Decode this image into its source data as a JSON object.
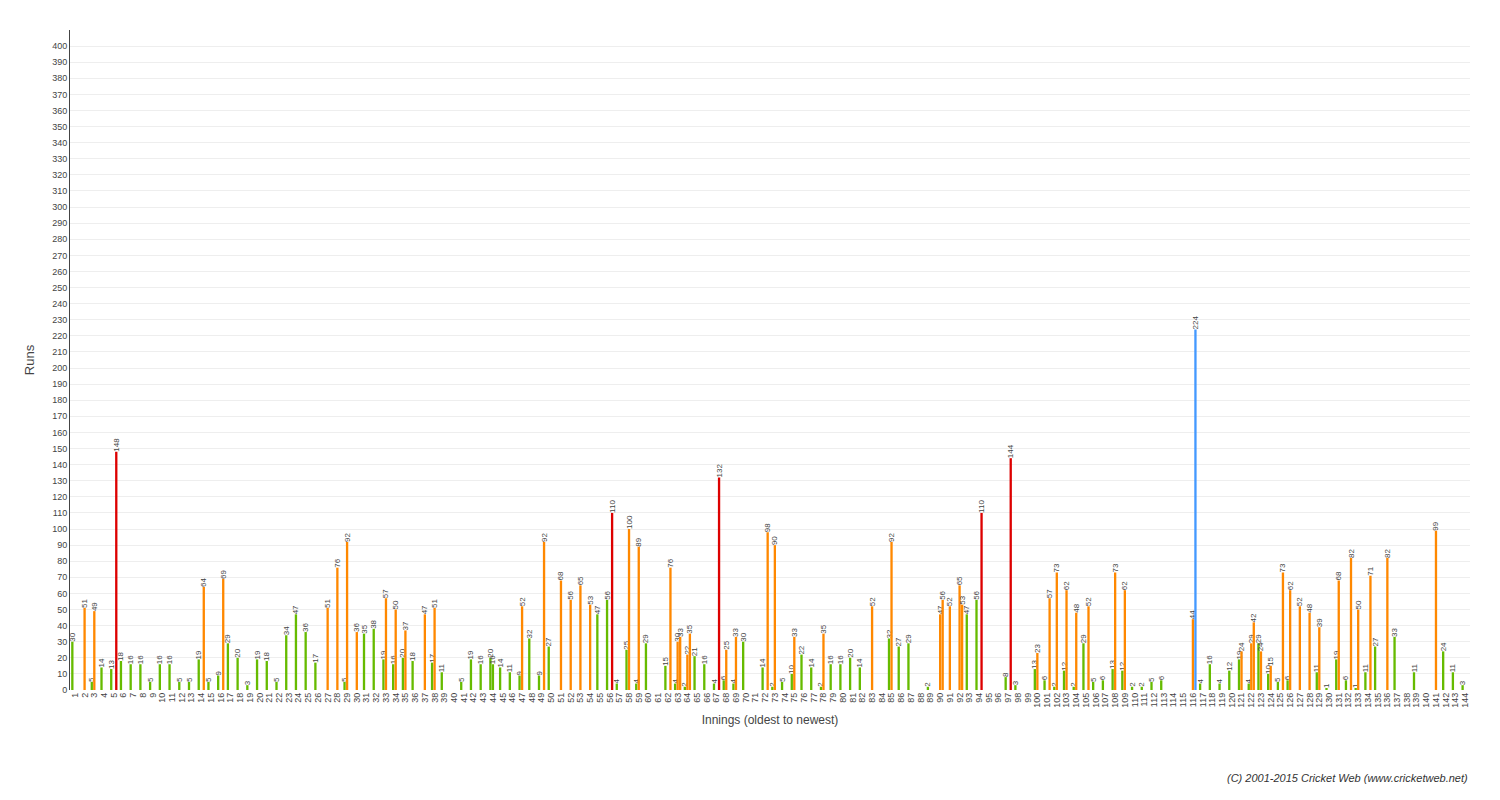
{
  "chart_data": {
    "type": "bar",
    "ylabel": "Runs",
    "xlabel": "Innings (oldest to newest)",
    "footer": "(C) 2001-2015 Cricket Web (www.cricketweb.net)",
    "ylim": [
      0,
      410
    ],
    "yticks": [
      0,
      10,
      20,
      30,
      40,
      50,
      60,
      70,
      80,
      90,
      100,
      110,
      120,
      130,
      140,
      150,
      160,
      170,
      180,
      190,
      200,
      210,
      220,
      230,
      240,
      250,
      260,
      270,
      280,
      290,
      300,
      310,
      320,
      330,
      340,
      350,
      360,
      370,
      380,
      390,
      400
    ],
    "grid": true,
    "data_labels": true,
    "categories": [
      "1",
      "2",
      "3",
      "4",
      "5",
      "6",
      "7",
      "8",
      "9",
      "10",
      "11",
      "12",
      "13",
      "14",
      "15",
      "16",
      "17",
      "18",
      "19",
      "20",
      "21",
      "22",
      "23",
      "24",
      "25",
      "26",
      "27",
      "28",
      "29",
      "30",
      "31",
      "32",
      "33",
      "34",
      "35",
      "36",
      "37",
      "38",
      "39",
      "40",
      "41",
      "42",
      "43",
      "44",
      "45",
      "46",
      "47",
      "48",
      "49",
      "50",
      "51",
      "52",
      "53",
      "54",
      "55",
      "56",
      "57",
      "58",
      "59",
      "60",
      "61",
      "62",
      "63",
      "64",
      "65",
      "66",
      "67",
      "68",
      "69",
      "70",
      "71",
      "72",
      "73",
      "74",
      "75",
      "76",
      "77",
      "78",
      "79",
      "80",
      "81",
      "82",
      "83",
      "84",
      "85",
      "86",
      "87",
      "88",
      "89",
      "90",
      "91",
      "92",
      "93",
      "94",
      "95",
      "96",
      "97",
      "98",
      "99",
      "100",
      "101",
      "102",
      "103",
      "104",
      "105",
      "106",
      "107",
      "108",
      "109",
      "110",
      "111",
      "112",
      "113",
      "114",
      "115",
      "116",
      "117",
      "118",
      "119",
      "120",
      "121",
      "122",
      "123",
      "124",
      "125",
      "126",
      "127",
      "128",
      "129",
      "130",
      "131",
      "132",
      "133",
      "134",
      "135",
      "136",
      "137",
      "138",
      "139",
      "140",
      "141",
      "142",
      "143",
      "144"
    ],
    "series": [
      {
        "values": [
          30,
          null,
          5,
          14,
          13,
          18,
          16,
          16,
          5,
          16,
          16,
          5,
          5,
          19,
          5,
          9,
          29,
          20,
          3,
          19,
          18,
          5,
          34,
          47,
          36,
          17,
          null,
          null,
          5,
          null,
          35,
          38,
          19,
          16,
          20,
          18,
          null,
          17,
          11,
          null,
          5,
          19,
          16,
          20,
          14,
          11,
          9,
          32,
          9,
          27,
          null,
          null,
          null,
          null,
          47,
          56,
          4,
          25,
          4,
          29,
          null,
          15,
          4,
          2,
          21,
          16,
          4,
          6,
          4,
          30,
          null,
          14,
          2,
          5,
          10,
          22,
          14,
          2,
          16,
          16,
          20,
          14,
          null,
          null,
          32,
          27,
          29,
          null,
          2,
          null,
          null,
          null,
          47,
          56,
          null,
          null,
          8,
          3,
          null,
          13,
          6,
          2,
          12,
          2,
          29,
          5,
          6,
          13,
          12,
          2,
          2,
          5,
          6,
          null,
          null,
          null,
          4,
          16,
          4,
          12,
          19,
          4,
          29,
          10,
          5,
          6,
          null,
          null,
          11,
          1,
          19,
          6,
          1,
          11,
          27,
          null,
          33,
          null,
          11,
          null,
          null,
          24,
          11,
          3
        ],
        "colors": [
          "#66BB00",
          "#66BB00",
          "#66BB00",
          "#66BB00",
          "#66BB00",
          "#66BB00",
          "#66BB00",
          "#66BB00",
          "#66BB00",
          "#66BB00",
          "#66BB00",
          "#66BB00",
          "#66BB00",
          "#66BB00",
          "#66BB00",
          "#66BB00",
          "#66BB00",
          "#66BB00",
          "#66BB00",
          "#66BB00",
          "#66BB00",
          "#66BB00",
          "#66BB00",
          "#66BB00",
          "#66BB00",
          "#66BB00",
          "#66BB00",
          "#66BB00",
          "#66BB00",
          "#66BB00",
          "#66BB00",
          "#66BB00",
          "#66BB00",
          "#66BB00",
          "#66BB00",
          "#66BB00",
          "#66BB00",
          "#66BB00",
          "#66BB00",
          "#66BB00",
          "#66BB00",
          "#66BB00",
          "#66BB00",
          "#66BB00",
          "#66BB00",
          "#66BB00",
          "#66BB00",
          "#66BB00",
          "#66BB00",
          "#66BB00",
          "#66BB00",
          "#66BB00",
          "#66BB00",
          "#66BB00",
          "#66BB00",
          "#66BB00",
          "#66BB00",
          "#66BB00",
          "#66BB00",
          "#66BB00",
          "#66BB00",
          "#66BB00",
          "#66BB00",
          "#66BB00",
          "#66BB00",
          "#66BB00",
          "#66BB00",
          "#66BB00",
          "#66BB00",
          "#66BB00",
          "#66BB00",
          "#66BB00",
          "#66BB00",
          "#66BB00",
          "#66BB00",
          "#66BB00",
          "#66BB00",
          "#66BB00",
          "#66BB00",
          "#66BB00",
          "#66BB00",
          "#66BB00",
          "#66BB00",
          "#66BB00",
          "#66BB00",
          "#66BB00",
          "#66BB00",
          "#66BB00",
          "#66BB00",
          "#66BB00",
          "#66BB00",
          "#66BB00",
          "#66BB00",
          "#66BB00",
          "#66BB00",
          "#66BB00",
          "#66BB00",
          "#66BB00",
          "#66BB00",
          "#66BB00",
          "#66BB00",
          "#66BB00",
          "#66BB00",
          "#66BB00",
          "#66BB00",
          "#66BB00",
          "#66BB00",
          "#66BB00",
          "#66BB00",
          "#66BB00",
          "#66BB00",
          "#66BB00",
          "#66BB00",
          "#66BB00",
          "#66BB00",
          "#66BB00",
          "#66BB00",
          "#66BB00",
          "#66BB00",
          "#66BB00",
          "#66BB00",
          "#66BB00",
          "#66BB00",
          "#66BB00",
          "#66BB00",
          "#66BB00",
          "#66BB00",
          "#66BB00",
          "#66BB00",
          "#66BB00",
          "#66BB00",
          "#66BB00",
          "#66BB00",
          "#66BB00",
          "#66BB00",
          "#66BB00",
          "#66BB00",
          "#66BB00",
          "#66BB00",
          "#66BB00",
          "#66BB00",
          "#66BB00",
          "#66BB00",
          "#66BB00"
        ]
      },
      {
        "values": [
          null,
          51,
          49,
          null,
          null,
          null,
          null,
          null,
          null,
          null,
          null,
          null,
          null,
          null,
          null,
          null,
          null,
          null,
          null,
          null,
          null,
          null,
          null,
          null,
          null,
          null,
          51,
          76,
          92,
          36,
          null,
          null,
          57,
          50,
          37,
          null,
          47,
          51,
          null,
          null,
          null,
          null,
          null,
          16,
          null,
          null,
          52,
          null,
          null,
          null,
          68,
          56,
          65,
          53,
          null,
          null,
          null,
          100,
          89,
          null,
          null,
          null,
          30,
          22,
          null,
          null,
          null,
          25,
          33,
          null,
          null,
          null,
          90,
          null,
          33,
          null,
          null,
          35,
          null,
          null,
          null,
          null,
          52,
          null,
          92,
          null,
          null,
          null,
          null,
          47,
          52,
          65,
          null,
          null,
          null,
          null,
          null,
          null,
          null,
          23,
          null,
          73,
          62,
          48,
          null,
          null,
          null,
          73,
          62,
          null,
          null,
          null,
          null,
          null,
          null,
          44,
          null,
          null,
          null,
          null,
          24,
          29,
          24,
          15,
          null,
          62,
          52,
          48,
          39,
          null,
          68,
          null,
          50,
          null,
          null,
          82,
          null,
          null,
          null,
          null,
          99,
          null,
          null,
          null
        ],
        "colors": [
          "#66BB00",
          "#FF8800",
          "#FF8800",
          "#66BB00",
          "#66BB00",
          "#66BB00",
          "#66BB00",
          "#66BB00",
          "#66BB00",
          "#66BB00",
          "#66BB00",
          "#66BB00",
          "#66BB00",
          "#66BB00",
          "#66BB00",
          "#66BB00",
          "#66BB00",
          "#66BB00",
          "#66BB00",
          "#66BB00",
          "#66BB00",
          "#66BB00",
          "#66BB00",
          "#66BB00",
          "#66BB00",
          "#66BB00",
          "#FF8800",
          "#FF8800",
          "#FF8800",
          "#FF8800",
          "#66BB00",
          "#66BB00",
          "#FF8800",
          "#FF8800",
          "#FF8800",
          "#66BB00",
          "#FF8800",
          "#FF8800",
          "#66BB00",
          "#66BB00",
          "#66BB00",
          "#66BB00",
          "#66BB00",
          "#66BB00",
          "#66BB00",
          "#66BB00",
          "#FF8800",
          "#66BB00",
          "#66BB00",
          "#66BB00",
          "#FF8800",
          "#FF8800",
          "#FF8800",
          "#FF8800",
          "#66BB00",
          "#66BB00",
          "#66BB00",
          "#FF8800",
          "#FF8800",
          "#66BB00",
          "#66BB00",
          "#66BB00",
          "#FF8800",
          "#FF8800",
          "#66BB00",
          "#66BB00",
          "#66BB00",
          "#FF8800",
          "#FF8800",
          "#66BB00",
          "#66BB00",
          "#66BB00",
          "#FF8800",
          "#66BB00",
          "#FF8800",
          "#66BB00",
          "#66BB00",
          "#FF8800",
          "#66BB00",
          "#66BB00",
          "#66BB00",
          "#66BB00",
          "#FF8800",
          "#66BB00",
          "#FF8800",
          "#66BB00",
          "#66BB00",
          "#66BB00",
          "#66BB00",
          "#FF8800",
          "#FF8800",
          "#FF8800",
          "#66BB00",
          "#66BB00",
          "#66BB00",
          "#66BB00",
          "#66BB00",
          "#66BB00",
          "#66BB00",
          "#FF8800",
          "#66BB00",
          "#FF8800",
          "#FF8800",
          "#FF8800",
          "#66BB00",
          "#66BB00",
          "#66BB00",
          "#FF8800",
          "#FF8800",
          "#66BB00",
          "#66BB00",
          "#66BB00",
          "#66BB00",
          "#66BB00",
          "#66BB00",
          "#FF8800",
          "#66BB00",
          "#66BB00",
          "#66BB00",
          "#66BB00",
          "#FF8800",
          "#FF8800",
          "#FF8800",
          "#FF8800",
          "#66BB00",
          "#FF8800",
          "#FF8800",
          "#FF8800",
          "#FF8800",
          "#66BB00",
          "#FF8800",
          "#66BB00",
          "#FF8800",
          "#66BB00",
          "#66BB00",
          "#FF8800",
          "#66BB00",
          "#66BB00",
          "#66BB00",
          "#66BB00",
          "#FF8800",
          "#66BB00",
          "#66BB00",
          "#66BB00"
        ]
      },
      {
        "values": [
          null,
          null,
          null,
          null,
          148,
          null,
          null,
          null,
          null,
          null,
          null,
          null,
          null,
          64,
          null,
          69,
          null,
          null,
          null,
          null,
          null,
          null,
          null,
          null,
          null,
          null,
          null,
          null,
          null,
          null,
          null,
          null,
          null,
          null,
          null,
          null,
          null,
          null,
          null,
          null,
          null,
          null,
          null,
          null,
          null,
          null,
          null,
          null,
          92,
          null,
          null,
          null,
          null,
          null,
          null,
          110,
          null,
          null,
          null,
          null,
          null,
          76,
          33,
          35,
          null,
          null,
          132,
          null,
          null,
          null,
          null,
          98,
          null,
          null,
          null,
          null,
          null,
          null,
          null,
          null,
          null,
          null,
          null,
          null,
          null,
          null,
          null,
          null,
          null,
          56,
          null,
          53,
          null,
          110,
          null,
          null,
          144,
          null,
          null,
          null,
          57,
          null,
          null,
          null,
          52,
          null,
          null,
          null,
          null,
          null,
          null,
          null,
          null,
          null,
          null,
          224,
          null,
          null,
          null,
          null,
          null,
          42,
          null,
          null,
          73,
          null,
          null,
          null,
          null,
          null,
          null,
          82,
          null,
          71,
          null,
          null,
          null,
          null,
          null,
          null,
          null,
          null,
          null,
          null
        ],
        "colors": [
          "#66BB00",
          "#66BB00",
          "#66BB00",
          "#66BB00",
          "#DD0000",
          "#66BB00",
          "#66BB00",
          "#66BB00",
          "#66BB00",
          "#66BB00",
          "#66BB00",
          "#66BB00",
          "#66BB00",
          "#FF8800",
          "#66BB00",
          "#FF8800",
          "#66BB00",
          "#66BB00",
          "#66BB00",
          "#66BB00",
          "#66BB00",
          "#66BB00",
          "#66BB00",
          "#66BB00",
          "#66BB00",
          "#66BB00",
          "#66BB00",
          "#66BB00",
          "#66BB00",
          "#66BB00",
          "#66BB00",
          "#66BB00",
          "#66BB00",
          "#66BB00",
          "#66BB00",
          "#66BB00",
          "#66BB00",
          "#66BB00",
          "#66BB00",
          "#66BB00",
          "#66BB00",
          "#66BB00",
          "#66BB00",
          "#66BB00",
          "#66BB00",
          "#66BB00",
          "#66BB00",
          "#66BB00",
          "#FF8800",
          "#66BB00",
          "#66BB00",
          "#66BB00",
          "#66BB00",
          "#66BB00",
          "#66BB00",
          "#DD0000",
          "#66BB00",
          "#66BB00",
          "#66BB00",
          "#66BB00",
          "#66BB00",
          "#FF8800",
          "#FF8800",
          "#FF8800",
          "#66BB00",
          "#66BB00",
          "#DD0000",
          "#66BB00",
          "#66BB00",
          "#66BB00",
          "#66BB00",
          "#FF8800",
          "#66BB00",
          "#66BB00",
          "#66BB00",
          "#66BB00",
          "#66BB00",
          "#66BB00",
          "#66BB00",
          "#66BB00",
          "#66BB00",
          "#66BB00",
          "#66BB00",
          "#66BB00",
          "#66BB00",
          "#66BB00",
          "#66BB00",
          "#66BB00",
          "#66BB00",
          "#FF8800",
          "#66BB00",
          "#FF8800",
          "#66BB00",
          "#DD0000",
          "#66BB00",
          "#66BB00",
          "#DD0000",
          "#66BB00",
          "#66BB00",
          "#66BB00",
          "#FF8800",
          "#66BB00",
          "#66BB00",
          "#66BB00",
          "#FF8800",
          "#66BB00",
          "#66BB00",
          "#66BB00",
          "#66BB00",
          "#66BB00",
          "#66BB00",
          "#66BB00",
          "#66BB00",
          "#66BB00",
          "#66BB00",
          "#4499FF",
          "#66BB00",
          "#66BB00",
          "#66BB00",
          "#66BB00",
          "#66BB00",
          "#FF8800",
          "#66BB00",
          "#66BB00",
          "#FF8800",
          "#66BB00",
          "#66BB00",
          "#66BB00",
          "#66BB00",
          "#66BB00",
          "#66BB00",
          "#FF8800",
          "#66BB00",
          "#FF8800",
          "#66BB00",
          "#66BB00",
          "#66BB00",
          "#66BB00",
          "#66BB00",
          "#66BB00",
          "#66BB00",
          "#66BB00",
          "#66BB00",
          "#66BB00"
        ]
      }
    ]
  }
}
